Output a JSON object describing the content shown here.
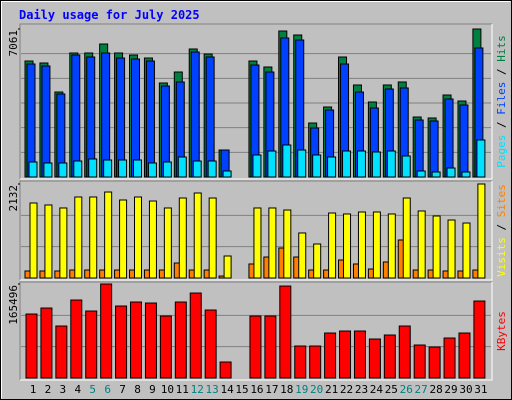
{
  "chart_data": [
    {
      "type": "bar",
      "title": "Daily usage for July 2025",
      "ylim": [
        0,
        7061
      ],
      "yticks": [
        7061
      ],
      "legend_separator": "/",
      "series": [
        {
          "name": "Hits",
          "color": "#008040",
          "values": [
            5534,
            5439,
            4055,
            5916,
            5916,
            6345,
            5916,
            5821,
            5677,
            4485,
            5009,
            6107,
            5868,
            1288,
            0,
            5534,
            5248,
            6965,
            6775,
            2576,
            3340,
            5725,
            4390,
            3578,
            4390,
            4533,
            2862,
            2815,
            3912,
            3626,
            7061
          ]
        },
        {
          "name": "Files",
          "color": "#0040ff",
          "values": [
            5391,
            5296,
            3960,
            5821,
            5725,
            5916,
            5677,
            5630,
            5534,
            4342,
            4533,
            5964,
            5725,
            1288,
            0,
            5343,
            5009,
            6632,
            6536,
            2338,
            3196,
            5391,
            4055,
            3292,
            4199,
            4247,
            2720,
            2672,
            3722,
            3435,
            6155
          ]
        },
        {
          "name": "Pages",
          "color": "#00e0ff",
          "values": [
            716,
            668,
            668,
            763,
            859,
            811,
            811,
            811,
            668,
            716,
            954,
            763,
            763,
            286,
            0,
            1050,
            1240,
            1527,
            1288,
            1050,
            954,
            1240,
            1240,
            1193,
            1240,
            1002,
            286,
            239,
            429,
            239,
            1766
          ]
        }
      ]
    },
    {
      "type": "bar",
      "ylim": [
        0,
        2132
      ],
      "yticks": [
        2132
      ],
      "legend_separator": "/",
      "series": [
        {
          "name": "Sites",
          "color": "#ff8000",
          "values": [
            159,
            159,
            159,
            181,
            181,
            181,
            181,
            181,
            181,
            181,
            340,
            181,
            181,
            45,
            0,
            318,
            476,
            680,
            476,
            181,
            181,
            408,
            318,
            204,
            363,
            862,
            181,
            181,
            159,
            159,
            181
          ]
        },
        {
          "name": "Visits",
          "color": "#ffff00",
          "values": [
            1701,
            1656,
            1588,
            1837,
            1837,
            1950,
            1769,
            1837,
            1746,
            1588,
            1814,
            1928,
            1814,
            499,
            0,
            1588,
            1588,
            1542,
            1021,
            771,
            1474,
            1452,
            1497,
            1497,
            1452,
            1814,
            1520,
            1406,
            1315,
            1247,
            2132
          ]
        }
      ]
    },
    {
      "type": "bar",
      "ylim": [
        0,
        165496
      ],
      "yticks": [
        165496
      ],
      "categories": [
        "1",
        "2",
        "3",
        "4",
        "5",
        "6",
        "7",
        "8",
        "9",
        "10",
        "11",
        "12",
        "13",
        "14",
        "15",
        "16",
        "17",
        "18",
        "19",
        "20",
        "21",
        "22",
        "23",
        "24",
        "25",
        "26",
        "27",
        "28",
        "29",
        "30",
        "31"
      ],
      "label_colors": [
        "#000000",
        "#000000",
        "#000000",
        "#000000",
        "#008080",
        "#008080",
        "#000000",
        "#000000",
        "#000000",
        "#000000",
        "#000000",
        "#008080",
        "#008080",
        "#000000",
        "#000000",
        "#000000",
        "#000000",
        "#000000",
        "#008080",
        "#008080",
        "#000000",
        "#000000",
        "#000000",
        "#000000",
        "#000000",
        "#008080",
        "#008080",
        "#000000",
        "#000000",
        "#000000",
        "#000000"
      ],
      "series": [
        {
          "name": "KBytes",
          "color": "#ff0000",
          "values": [
            112640,
            123200,
            91520,
            137280,
            117920,
            165496,
            126720,
            133760,
            132000,
            109120,
            133760,
            149600,
            119680,
            28160,
            0,
            109120,
            109120,
            161920,
            56320,
            56320,
            79200,
            82720,
            82720,
            68640,
            75680,
            91520,
            58080,
            54560,
            70400,
            79200,
            135520
          ]
        }
      ]
    }
  ]
}
